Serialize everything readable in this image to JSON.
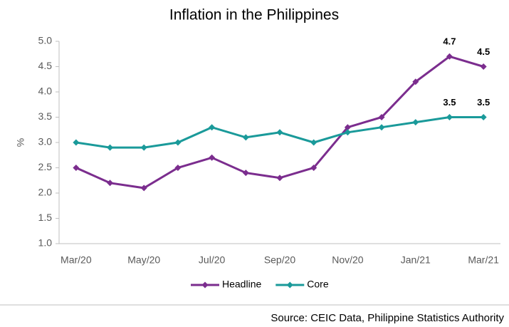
{
  "chart_data": {
    "type": "line",
    "title": "Inflation in the Philippines",
    "y_label": "%",
    "source": "Source: CEIC Data, Philippine Statistics Authority",
    "categories": [
      "Mar/20",
      null,
      "May/20",
      null,
      "Jul/20",
      null,
      "Sep/20",
      null,
      "Nov/20",
      null,
      "Jan/21",
      null,
      "Mar/21"
    ],
    "series": [
      {
        "name": "Headline",
        "color": "#7b2d8e",
        "values": [
          2.5,
          2.2,
          2.1,
          2.5,
          2.7,
          2.4,
          2.3,
          2.5,
          3.3,
          3.5,
          4.2,
          4.7,
          4.5
        ],
        "data_labels": [
          11,
          12
        ]
      },
      {
        "name": "Core",
        "color": "#1a9a9a",
        "values": [
          3.0,
          2.9,
          2.9,
          3.0,
          3.3,
          3.1,
          3.2,
          3.0,
          3.2,
          3.3,
          3.4,
          3.5,
          3.5
        ],
        "data_labels": [
          11,
          12
        ]
      }
    ],
    "ylim": [
      1,
      5
    ],
    "yticks": [
      {
        "value": 1,
        "label": "1.0"
      },
      1.5,
      {
        "value": 2,
        "label": "2.0"
      },
      2.5,
      {
        "value": 3,
        "label": "3.0"
      },
      3.5,
      {
        "value": 4,
        "label": "4.0"
      },
      4.5,
      {
        "value": 5,
        "label": "5.0"
      }
    ],
    "grid": false,
    "legend": "bottom"
  }
}
